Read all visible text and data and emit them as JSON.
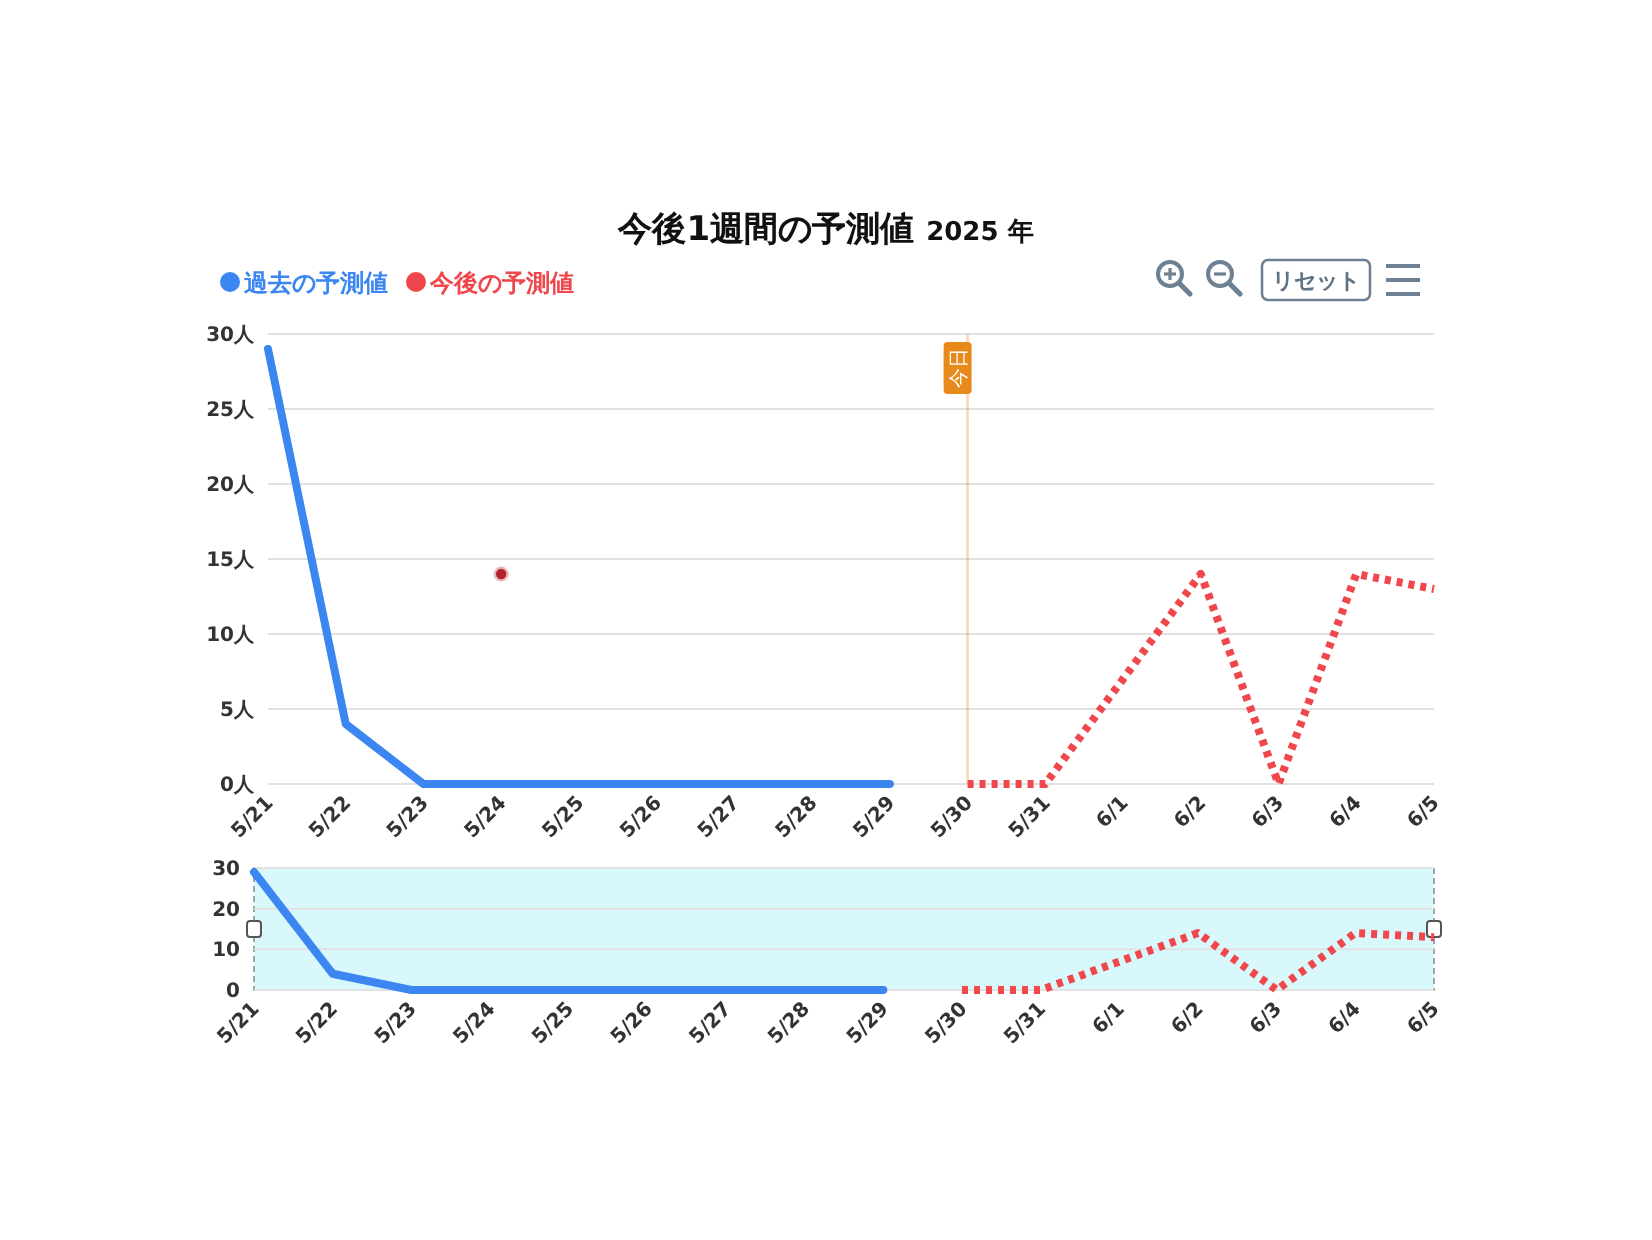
{
  "chart_data": [
    {
      "type": "line",
      "title": "今後1週間の予測値",
      "subtitle": "2025 年",
      "categories": [
        "5/21",
        "5/22",
        "5/23",
        "5/24",
        "5/25",
        "5/26",
        "5/27",
        "5/28",
        "5/29",
        "5/30",
        "5/31",
        "6/1",
        "6/2",
        "6/3",
        "6/4",
        "6/5"
      ],
      "series": [
        {
          "name": "過去の予測値",
          "color": "#3b86f1",
          "line_style": "solid",
          "values": [
            29,
            4,
            0,
            0,
            0,
            0,
            0,
            0,
            0,
            null,
            null,
            null,
            null,
            null,
            null,
            null
          ]
        },
        {
          "name": "今後の予測値",
          "color": "#f0474c",
          "line_style": "dotted",
          "values": [
            null,
            null,
            null,
            null,
            null,
            null,
            null,
            null,
            null,
            0,
            0,
            7,
            14,
            0,
            14,
            13
          ]
        },
        {
          "type": "scatter",
          "color": "#b3232d",
          "values": [
            null,
            null,
            null,
            14,
            null,
            null,
            null,
            null,
            null,
            null,
            null,
            null,
            null,
            null,
            null,
            null
          ]
        }
      ],
      "ylim": [
        0,
        30
      ],
      "yticks": [
        {
          "value": 0,
          "label": "0人"
        },
        {
          "value": 5,
          "label": "5人"
        },
        {
          "value": 10,
          "label": "10人"
        },
        {
          "value": 15,
          "label": "15人"
        },
        {
          "value": 20,
          "label": "20人"
        },
        {
          "value": 25,
          "label": "25人"
        },
        {
          "value": 30,
          "label": "30人"
        }
      ],
      "grid": "y",
      "legend": "top left",
      "ref_lines": [
        {
          "axis": "x",
          "value": "5/30",
          "label": "今日",
          "color": "#e8891c"
        }
      ],
      "annotations": [
        "リセット"
      ]
    },
    {
      "type": "line",
      "categories": [
        "5/21",
        "5/22",
        "5/23",
        "5/24",
        "5/25",
        "5/26",
        "5/27",
        "5/28",
        "5/29",
        "5/30",
        "5/31",
        "6/1",
        "6/2",
        "6/3",
        "6/4",
        "6/5"
      ],
      "series": [
        {
          "color": "#3b86f1",
          "line_style": "solid",
          "values": [
            29,
            4,
            0,
            0,
            0,
            0,
            0,
            0,
            0,
            null,
            null,
            null,
            null,
            null,
            null,
            null
          ]
        },
        {
          "color": "#f0474c",
          "line_style": "dotted",
          "values": [
            null,
            null,
            null,
            null,
            null,
            null,
            null,
            null,
            null,
            0,
            0,
            7,
            14,
            0,
            14,
            13
          ]
        }
      ],
      "ylim": [
        0,
        30
      ],
      "yticks": [
        0,
        10,
        20,
        30
      ],
      "grid": "y",
      "bands": [
        {
          "axis": "x",
          "from": "5/21",
          "to": "6/5",
          "color": "#d8f8fb"
        }
      ]
    }
  ]
}
